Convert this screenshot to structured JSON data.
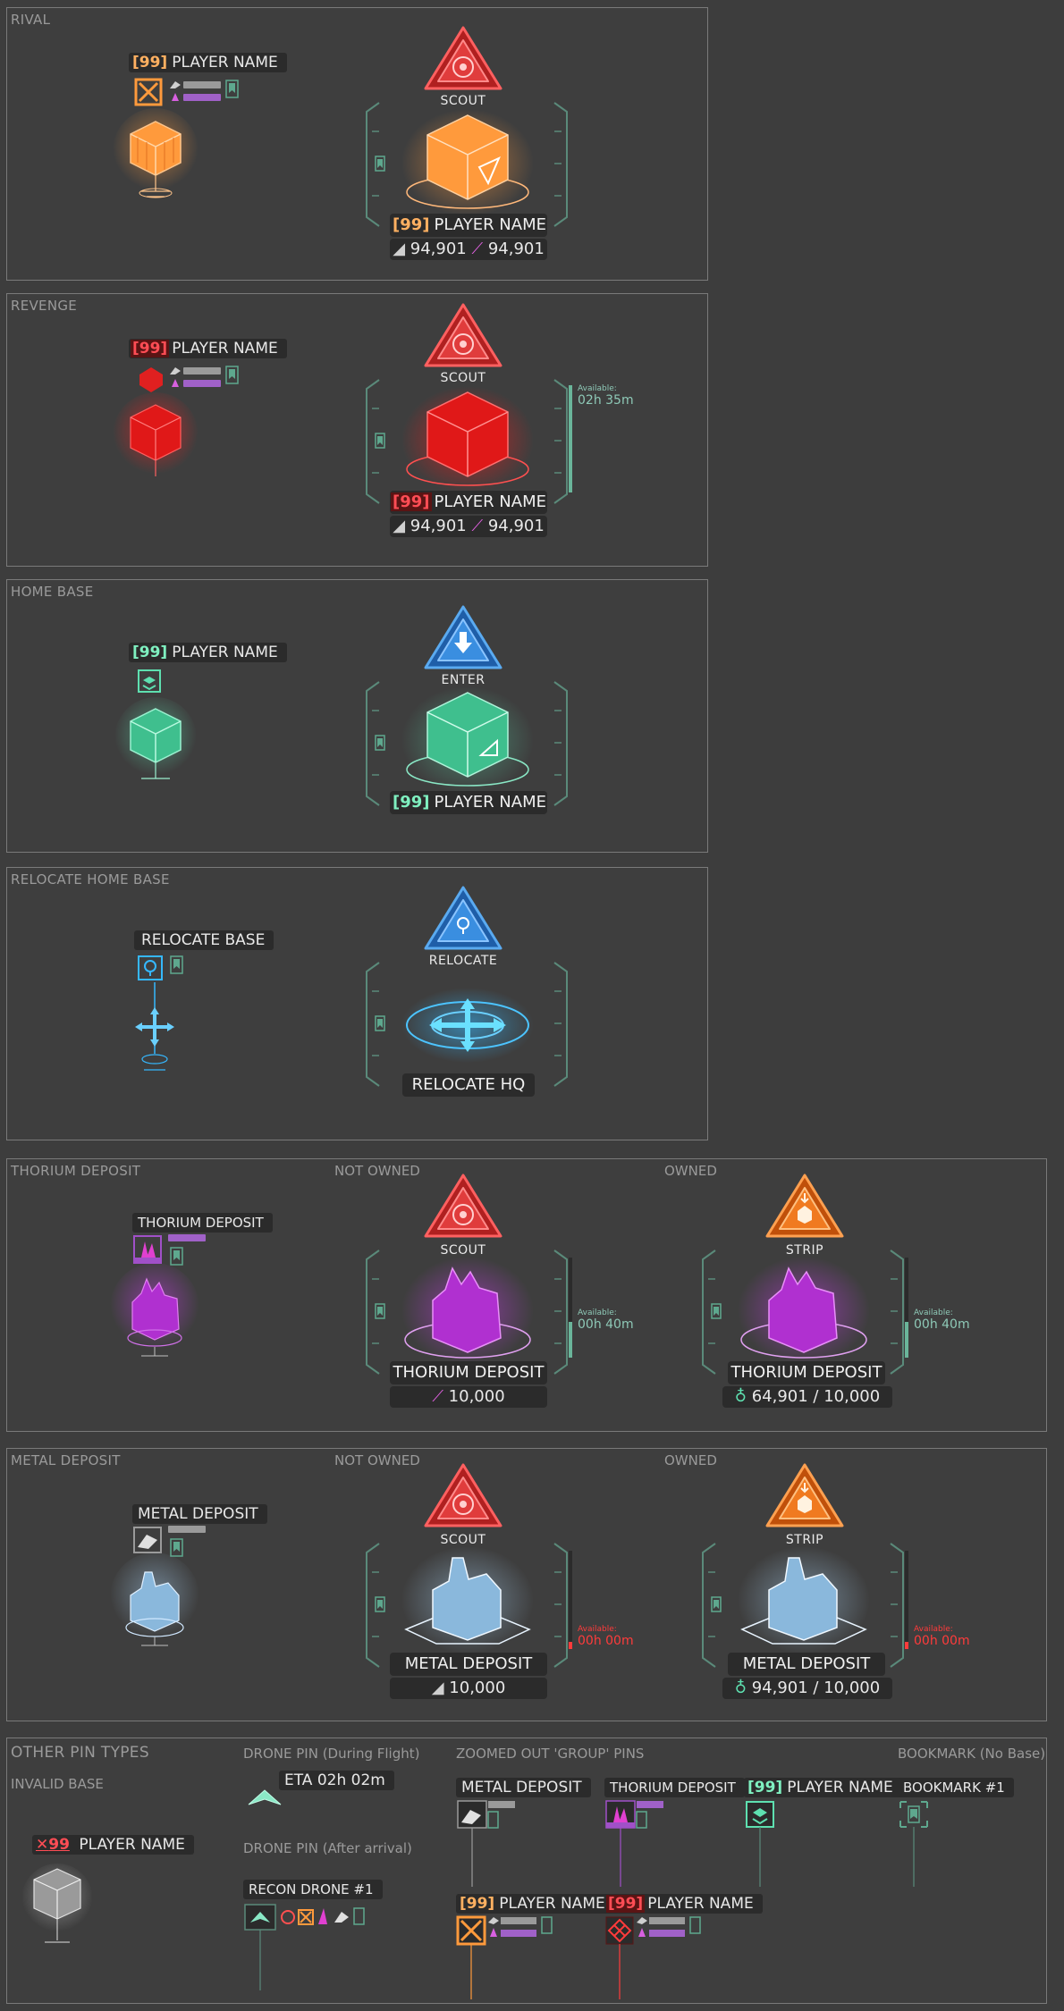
{
  "panels": {
    "rival": {
      "title": "RIVAL"
    },
    "revenge": {
      "title": "REVENGE"
    },
    "home": {
      "title": "HOME BASE"
    },
    "relocate": {
      "title": "RELOCATE HOME BASE"
    },
    "thorium": {
      "title": "THORIUM DEPOSIT",
      "not_owned": "NOT OWNED",
      "owned": "OWNED"
    },
    "metal": {
      "title": "METAL DEPOSIT",
      "not_owned": "NOT OWNED",
      "owned": "OWNED"
    },
    "other": {
      "title": "OTHER PIN TYPES"
    }
  },
  "common": {
    "level": "[99]",
    "player_name": "PLAYER NAME",
    "metal_amount": "94,901",
    "thorium_amount": "94,901"
  },
  "actions": {
    "scout": "SCOUT",
    "enter": "ENTER",
    "relocate": "RELOCATE",
    "strip": "STRIP"
  },
  "revenge": {
    "available_label": "Available:",
    "available_time": "02h 35m"
  },
  "relocate": {
    "small_label": "RELOCATE BASE",
    "big_label": "RELOCATE HQ"
  },
  "thorium": {
    "small_label": "THORIUM DEPOSIT",
    "big_label": "THORIUM DEPOSIT",
    "amount": "10,000",
    "owned_amount": "64,901 / 10,000",
    "available_label": "Available:",
    "available_time": "00h 40m"
  },
  "metal": {
    "small_label": "METAL DEPOSIT",
    "big_label": "METAL DEPOSIT",
    "amount": "10,000",
    "owned_amount": "94,901 / 10,000",
    "available_label": "Available:",
    "available_time": "00h 00m"
  },
  "other": {
    "invalid_base": "INVALID BASE",
    "invalid_level": "99",
    "drone_flight": "DRONE PIN (During Flight)",
    "eta": "ETA 02h 02m",
    "drone_arrival": "DRONE PIN (After arrival)",
    "recon_drone": "RECON DRONE #1",
    "zoomed_out": "ZOOMED OUT 'GROUP' PINS",
    "metal_deposit": "METAL DEPOSIT",
    "thorium_deposit": "THORIUM DEPOSIT",
    "bookmark_title": "BOOKMARK (No Base)",
    "bookmark_name": "BOOKMARK #1"
  },
  "colors": {
    "rival": "#ff9a3c",
    "revenge": "#ff2a2a",
    "home": "#5ee0b0",
    "relocate": "#35b8ff",
    "thorium": "#c040e0",
    "metal": "#a8d0f0",
    "scout_badge": "#e03c3c",
    "enter_badge": "#3a8ee0",
    "strip_badge": "#f07a20"
  }
}
